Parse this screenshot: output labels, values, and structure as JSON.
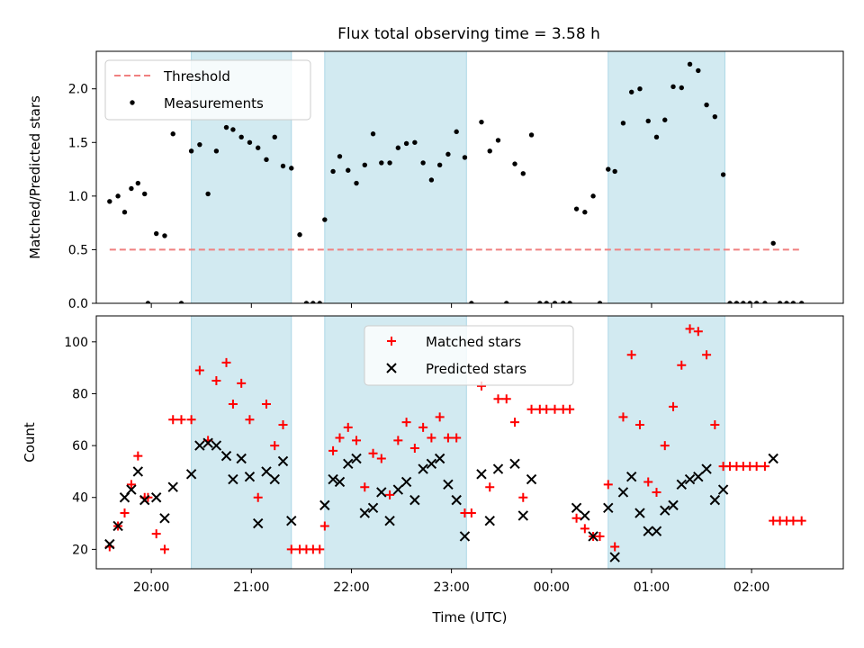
{
  "title": "Flux total observing time = 3.58 h",
  "colors": {
    "threshold": "#f08080",
    "shade": "#add8e6",
    "measure": "#000000",
    "matched": "#ff0000",
    "predicted": "#000000"
  },
  "chart_data": [
    {
      "type": "scatter",
      "ylabel": "Matched/Predicted stars",
      "ylim": [
        0,
        2.35
      ],
      "yticks": [
        0.0,
        0.5,
        1.0,
        1.5,
        2.0
      ],
      "ytick_labels": [
        "0.0",
        "0.5",
        "1.0",
        "1.5",
        "2.0"
      ],
      "xlim": [
        "19:27",
        "02:55"
      ],
      "xticks": [
        "20:00",
        "21:00",
        "22:00",
        "23:00",
        "00:00",
        "01:00",
        "02:00"
      ],
      "legend": [
        "Threshold",
        "Measurements"
      ],
      "legend_position": "top-left",
      "threshold": {
        "name": "Threshold",
        "value": 0.5,
        "from": "19:35",
        "to": "02:30"
      },
      "shaded_intervals": [
        [
          "20:24",
          "21:24"
        ],
        [
          "21:44",
          "23:09"
        ],
        [
          "00:34",
          "01:44"
        ]
      ],
      "series": [
        {
          "name": "Measurements",
          "points": [
            [
              "19:35",
              0.95
            ],
            [
              "19:40",
              1.0
            ],
            [
              "19:44",
              0.85
            ],
            [
              "19:48",
              1.07
            ],
            [
              "19:52",
              1.12
            ],
            [
              "19:56",
              1.02
            ],
            [
              "19:58",
              0.0
            ],
            [
              "20:03",
              0.65
            ],
            [
              "20:08",
              0.63
            ],
            [
              "20:13",
              1.58
            ],
            [
              "20:18",
              0.0
            ],
            [
              "20:24",
              1.42
            ],
            [
              "20:29",
              1.48
            ],
            [
              "20:34",
              1.02
            ],
            [
              "20:39",
              1.42
            ],
            [
              "20:45",
              1.64
            ],
            [
              "20:49",
              1.62
            ],
            [
              "20:54",
              1.55
            ],
            [
              "20:59",
              1.5
            ],
            [
              "21:04",
              1.45
            ],
            [
              "21:09",
              1.34
            ],
            [
              "21:14",
              1.55
            ],
            [
              "21:19",
              1.28
            ],
            [
              "21:24",
              1.26
            ],
            [
              "21:29",
              0.64
            ],
            [
              "21:33",
              0.0
            ],
            [
              "21:37",
              0.0
            ],
            [
              "21:41",
              0.0
            ],
            [
              "21:44",
              0.78
            ],
            [
              "21:49",
              1.23
            ],
            [
              "21:53",
              1.37
            ],
            [
              "21:58",
              1.24
            ],
            [
              "22:03",
              1.12
            ],
            [
              "22:08",
              1.29
            ],
            [
              "22:13",
              1.58
            ],
            [
              "22:18",
              1.31
            ],
            [
              "22:23",
              1.31
            ],
            [
              "22:28",
              1.45
            ],
            [
              "22:33",
              1.49
            ],
            [
              "22:38",
              1.5
            ],
            [
              "22:43",
              1.31
            ],
            [
              "22:48",
              1.15
            ],
            [
              "22:53",
              1.29
            ],
            [
              "22:58",
              1.39
            ],
            [
              "23:03",
              1.6
            ],
            [
              "23:08",
              1.36
            ],
            [
              "23:12",
              0.0
            ],
            [
              "23:18",
              1.69
            ],
            [
              "23:23",
              1.42
            ],
            [
              "23:28",
              1.52
            ],
            [
              "23:33",
              0.0
            ],
            [
              "23:38",
              1.3
            ],
            [
              "23:43",
              1.21
            ],
            [
              "23:48",
              1.57
            ],
            [
              "23:53",
              0.0
            ],
            [
              "23:57",
              0.0
            ],
            [
              "00:02",
              0.0
            ],
            [
              "00:07",
              0.0
            ],
            [
              "00:11",
              0.0
            ],
            [
              "00:15",
              0.88
            ],
            [
              "00:20",
              0.85
            ],
            [
              "00:25",
              1.0
            ],
            [
              "00:29",
              0.0
            ],
            [
              "00:34",
              1.25
            ],
            [
              "00:38",
              1.23
            ],
            [
              "00:43",
              1.68
            ],
            [
              "00:48",
              1.97
            ],
            [
              "00:53",
              2.0
            ],
            [
              "00:58",
              1.7
            ],
            [
              "01:03",
              1.55
            ],
            [
              "01:08",
              1.71
            ],
            [
              "01:13",
              2.02
            ],
            [
              "01:18",
              2.01
            ],
            [
              "01:23",
              2.23
            ],
            [
              "01:28",
              2.17
            ],
            [
              "01:33",
              1.85
            ],
            [
              "01:38",
              1.74
            ],
            [
              "01:43",
              1.2
            ],
            [
              "01:47",
              0.0
            ],
            [
              "01:51",
              0.0
            ],
            [
              "01:55",
              0.0
            ],
            [
              "01:59",
              0.0
            ],
            [
              "02:03",
              0.0
            ],
            [
              "02:08",
              0.0
            ],
            [
              "02:13",
              0.56
            ],
            [
              "02:17",
              0.0
            ],
            [
              "02:21",
              0.0
            ],
            [
              "02:25",
              0.0
            ],
            [
              "02:30",
              0.0
            ]
          ]
        }
      ]
    },
    {
      "type": "scatter",
      "xlabel": "Time (UTC)",
      "ylabel": "Count",
      "ylim": [
        12.5,
        110
      ],
      "yticks": [
        20,
        40,
        60,
        80,
        100
      ],
      "ytick_labels": [
        "20",
        "40",
        "60",
        "80",
        "100"
      ],
      "xlim": [
        "19:27",
        "02:55"
      ],
      "xticks": [
        "20:00",
        "21:00",
        "22:00",
        "23:00",
        "00:00",
        "01:00",
        "02:00"
      ],
      "xtick_labels": [
        "20:00",
        "21:00",
        "22:00",
        "23:00",
        "00:00",
        "01:00",
        "02:00"
      ],
      "legend": [
        "Matched stars",
        "Predicted stars"
      ],
      "legend_position": "top-center",
      "shaded_intervals": [
        [
          "20:24",
          "21:24"
        ],
        [
          "21:44",
          "23:09"
        ],
        [
          "00:34",
          "01:44"
        ]
      ],
      "series": [
        {
          "name": "Matched stars",
          "marker": "plus",
          "points": [
            [
              "19:35",
              21
            ],
            [
              "19:40",
              29
            ],
            [
              "19:44",
              34
            ],
            [
              "19:48",
              45
            ],
            [
              "19:52",
              56
            ],
            [
              "19:56",
              40
            ],
            [
              "19:58",
              40
            ],
            [
              "20:03",
              26
            ],
            [
              "20:08",
              20
            ],
            [
              "20:13",
              70
            ],
            [
              "20:18",
              70
            ],
            [
              "20:24",
              70
            ],
            [
              "20:29",
              89
            ],
            [
              "20:34",
              62
            ],
            [
              "20:39",
              85
            ],
            [
              "20:45",
              92
            ],
            [
              "20:49",
              76
            ],
            [
              "20:54",
              84
            ],
            [
              "20:59",
              70
            ],
            [
              "21:04",
              40
            ],
            [
              "21:09",
              76
            ],
            [
              "21:14",
              60
            ],
            [
              "21:19",
              68
            ],
            [
              "21:24",
              20
            ],
            [
              "21:29",
              20
            ],
            [
              "21:33",
              20
            ],
            [
              "21:37",
              20
            ],
            [
              "21:41",
              20
            ],
            [
              "21:44",
              29
            ],
            [
              "21:49",
              58
            ],
            [
              "21:53",
              63
            ],
            [
              "21:58",
              67
            ],
            [
              "22:03",
              62
            ],
            [
              "22:08",
              44
            ],
            [
              "22:13",
              57
            ],
            [
              "22:18",
              55
            ],
            [
              "22:23",
              41
            ],
            [
              "22:28",
              62
            ],
            [
              "22:33",
              69
            ],
            [
              "22:38",
              59
            ],
            [
              "22:43",
              67
            ],
            [
              "22:48",
              63
            ],
            [
              "22:53",
              71
            ],
            [
              "22:58",
              63
            ],
            [
              "23:03",
              63
            ],
            [
              "23:08",
              34
            ],
            [
              "23:12",
              34
            ],
            [
              "23:18",
              83
            ],
            [
              "23:23",
              44
            ],
            [
              "23:28",
              78
            ],
            [
              "23:33",
              78
            ],
            [
              "23:38",
              69
            ],
            [
              "23:43",
              40
            ],
            [
              "23:48",
              74
            ],
            [
              "23:53",
              74
            ],
            [
              "23:57",
              74
            ],
            [
              "00:02",
              74
            ],
            [
              "00:07",
              74
            ],
            [
              "00:11",
              74
            ],
            [
              "00:15",
              32
            ],
            [
              "00:20",
              28
            ],
            [
              "00:25",
              25
            ],
            [
              "00:29",
              25
            ],
            [
              "00:34",
              45
            ],
            [
              "00:38",
              21
            ],
            [
              "00:43",
              71
            ],
            [
              "00:48",
              95
            ],
            [
              "00:53",
              68
            ],
            [
              "00:58",
              46
            ],
            [
              "01:03",
              42
            ],
            [
              "01:08",
              60
            ],
            [
              "01:13",
              75
            ],
            [
              "01:18",
              91
            ],
            [
              "01:23",
              105
            ],
            [
              "01:28",
              104
            ],
            [
              "01:33",
              95
            ],
            [
              "01:38",
              68
            ],
            [
              "01:43",
              52
            ],
            [
              "01:47",
              52
            ],
            [
              "01:51",
              52
            ],
            [
              "01:55",
              52
            ],
            [
              "01:59",
              52
            ],
            [
              "02:03",
              52
            ],
            [
              "02:08",
              52
            ],
            [
              "02:13",
              31
            ],
            [
              "02:17",
              31
            ],
            [
              "02:21",
              31
            ],
            [
              "02:25",
              31
            ],
            [
              "02:30",
              31
            ]
          ]
        },
        {
          "name": "Predicted stars",
          "marker": "x",
          "points": [
            [
              "19:35",
              22
            ],
            [
              "19:40",
              29
            ],
            [
              "19:44",
              40
            ],
            [
              "19:48",
              43
            ],
            [
              "19:52",
              50
            ],
            [
              "19:56",
              39
            ],
            [
              "20:03",
              40
            ],
            [
              "20:08",
              32
            ],
            [
              "20:13",
              44
            ],
            [
              "20:24",
              49
            ],
            [
              "20:29",
              60
            ],
            [
              "20:34",
              61
            ],
            [
              "20:39",
              60
            ],
            [
              "20:45",
              56
            ],
            [
              "20:49",
              47
            ],
            [
              "20:54",
              55
            ],
            [
              "20:59",
              48
            ],
            [
              "21:04",
              30
            ],
            [
              "21:09",
              50
            ],
            [
              "21:14",
              47
            ],
            [
              "21:19",
              54
            ],
            [
              "21:24",
              31
            ],
            [
              "21:44",
              37
            ],
            [
              "21:49",
              47
            ],
            [
              "21:53",
              46
            ],
            [
              "21:58",
              53
            ],
            [
              "22:03",
              55
            ],
            [
              "22:08",
              34
            ],
            [
              "22:13",
              36
            ],
            [
              "22:18",
              42
            ],
            [
              "22:23",
              31
            ],
            [
              "22:28",
              43
            ],
            [
              "22:33",
              46
            ],
            [
              "22:38",
              39
            ],
            [
              "22:43",
              51
            ],
            [
              "22:48",
              53
            ],
            [
              "22:53",
              55
            ],
            [
              "22:58",
              45
            ],
            [
              "23:03",
              39
            ],
            [
              "23:08",
              25
            ],
            [
              "23:18",
              49
            ],
            [
              "23:23",
              31
            ],
            [
              "23:28",
              51
            ],
            [
              "23:38",
              53
            ],
            [
              "23:43",
              33
            ],
            [
              "23:48",
              47
            ],
            [
              "00:15",
              36
            ],
            [
              "00:20",
              33
            ],
            [
              "00:25",
              25
            ],
            [
              "00:34",
              36
            ],
            [
              "00:38",
              17
            ],
            [
              "00:43",
              42
            ],
            [
              "00:48",
              48
            ],
            [
              "00:53",
              34
            ],
            [
              "00:58",
              27
            ],
            [
              "01:03",
              27
            ],
            [
              "01:08",
              35
            ],
            [
              "01:13",
              37
            ],
            [
              "01:18",
              45
            ],
            [
              "01:23",
              47
            ],
            [
              "01:28",
              48
            ],
            [
              "01:33",
              51
            ],
            [
              "01:38",
              39
            ],
            [
              "01:43",
              43
            ],
            [
              "02:13",
              55
            ]
          ]
        }
      ]
    }
  ]
}
